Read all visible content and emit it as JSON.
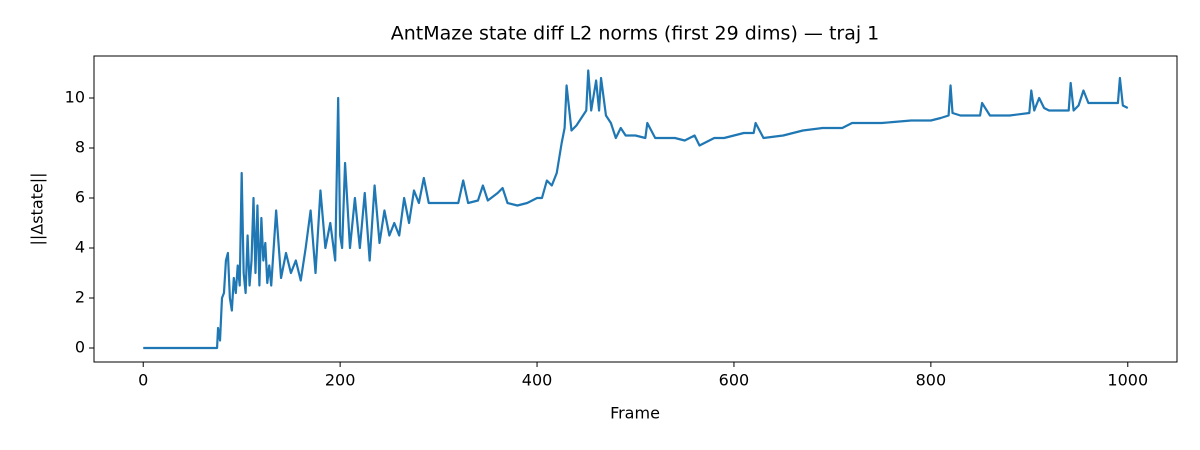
{
  "chart_data": {
    "type": "line",
    "title": "AntMaze state diff L2 norms (first 29 dims) — traj 1",
    "xlabel": "Frame",
    "ylabel": "||Δstate||",
    "color": "#1f77b4",
    "grid": false,
    "xlim": [
      -50,
      1050
    ],
    "xticks": [
      0,
      200,
      400,
      600,
      800,
      1000
    ],
    "ylim": [
      -0.56,
      11.68
    ],
    "yticks": [
      0,
      2,
      4,
      6,
      8,
      10
    ],
    "x": [
      0,
      75,
      76,
      78,
      80,
      82,
      84,
      86,
      88,
      90,
      92,
      94,
      96,
      98,
      100,
      102,
      104,
      106,
      108,
      110,
      112,
      114,
      116,
      118,
      120,
      122,
      124,
      126,
      128,
      130,
      135,
      140,
      145,
      150,
      155,
      160,
      165,
      170,
      175,
      180,
      185,
      190,
      195,
      198,
      200,
      202,
      205,
      210,
      215,
      220,
      225,
      230,
      235,
      240,
      245,
      250,
      255,
      260,
      265,
      270,
      275,
      280,
      285,
      290,
      300,
      310,
      320,
      325,
      330,
      340,
      345,
      350,
      360,
      365,
      370,
      380,
      390,
      400,
      405,
      410,
      415,
      420,
      425,
      428,
      430,
      435,
      440,
      445,
      450,
      452,
      455,
      460,
      463,
      465,
      470,
      475,
      480,
      485,
      490,
      500,
      510,
      512,
      520,
      530,
      540,
      550,
      560,
      565,
      570,
      580,
      590,
      600,
      610,
      620,
      622,
      630,
      650,
      670,
      690,
      700,
      710,
      720,
      750,
      780,
      800,
      810,
      818,
      820,
      822,
      830,
      840,
      850,
      852,
      860,
      880,
      900,
      902,
      905,
      910,
      915,
      920,
      940,
      942,
      945,
      950,
      955,
      960,
      980,
      990,
      992,
      995,
      1000
    ],
    "values": [
      0,
      0,
      0.8,
      0.3,
      2.0,
      2.2,
      3.5,
      3.8,
      2.0,
      1.5,
      2.8,
      2.2,
      3.3,
      2.5,
      7.0,
      3.0,
      2.2,
      4.5,
      2.5,
      3.5,
      6.0,
      3.0,
      5.7,
      2.5,
      5.2,
      3.5,
      4.2,
      2.6,
      3.3,
      2.5,
      5.5,
      2.8,
      3.8,
      3.0,
      3.5,
      2.7,
      4.0,
      5.5,
      3.0,
      6.3,
      4.0,
      5.0,
      3.5,
      10.0,
      4.5,
      4.0,
      7.4,
      4.0,
      6.0,
      4.0,
      6.2,
      3.5,
      6.5,
      4.2,
      5.5,
      4.5,
      5.0,
      4.5,
      6.0,
      5.0,
      6.3,
      5.8,
      6.8,
      5.8,
      5.8,
      5.8,
      5.8,
      6.7,
      5.8,
      5.9,
      6.5,
      5.9,
      6.2,
      6.4,
      5.8,
      5.7,
      5.8,
      6.0,
      6.0,
      6.7,
      6.5,
      7.0,
      8.2,
      8.8,
      10.5,
      8.7,
      8.9,
      9.2,
      9.5,
      11.1,
      9.5,
      10.7,
      9.5,
      10.8,
      9.3,
      9.0,
      8.4,
      8.8,
      8.5,
      8.5,
      8.4,
      9.0,
      8.4,
      8.4,
      8.4,
      8.3,
      8.5,
      8.1,
      8.2,
      8.4,
      8.4,
      8.5,
      8.6,
      8.6,
      9.0,
      8.4,
      8.5,
      8.7,
      8.8,
      8.8,
      8.8,
      9.0,
      9.0,
      9.1,
      9.1,
      9.2,
      9.3,
      10.5,
      9.4,
      9.3,
      9.3,
      9.3,
      9.8,
      9.3,
      9.3,
      9.4,
      10.3,
      9.5,
      10.0,
      9.6,
      9.5,
      9.5,
      10.6,
      9.5,
      9.7,
      10.3,
      9.8,
      9.8,
      9.8,
      10.8,
      9.7,
      9.6
    ]
  }
}
